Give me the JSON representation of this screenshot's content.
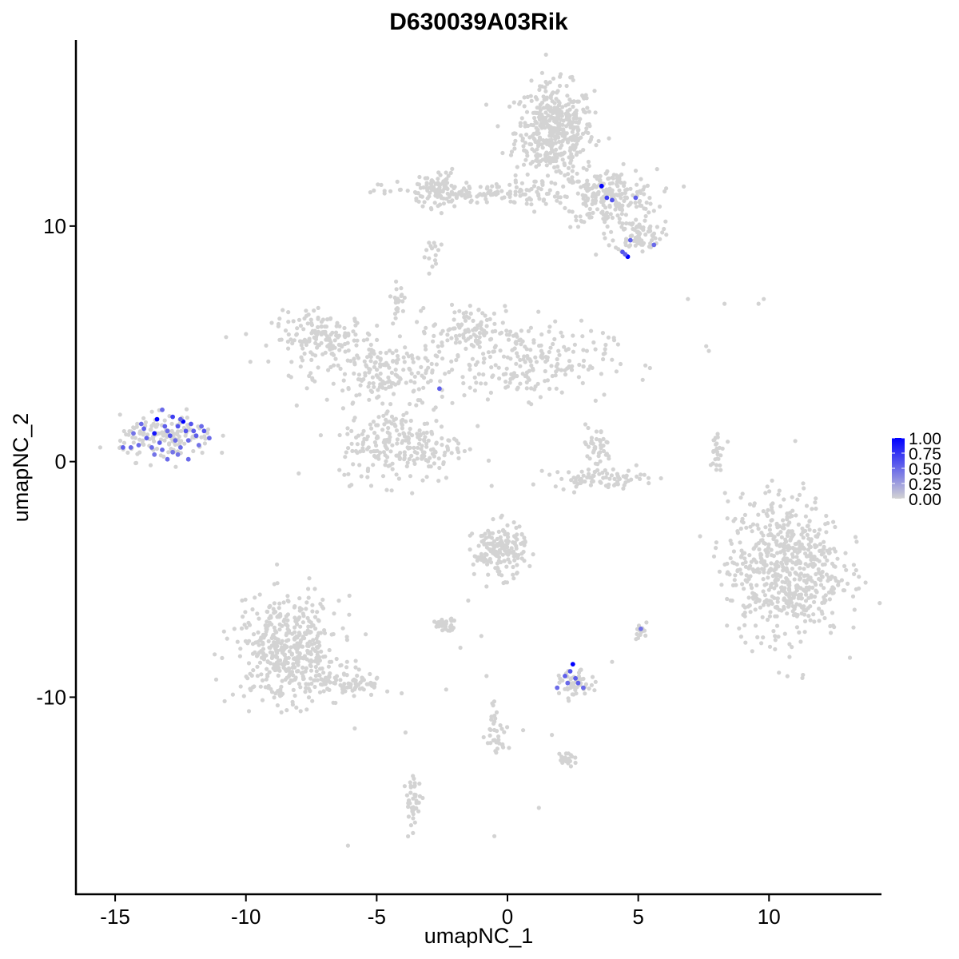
{
  "chart_data": {
    "type": "scatter",
    "title": "D630039A03Rik",
    "xlabel": "umapNC_1",
    "ylabel": "umapNC_2",
    "xlim": [
      -16.5,
      14.3
    ],
    "ylim": [
      -18.4,
      17.9
    ],
    "x_ticks": [
      -15,
      -10,
      -5,
      0,
      5,
      10
    ],
    "x_tick_labels": [
      "-15",
      "-10",
      "-5",
      "0",
      "5",
      "10"
    ],
    "y_ticks": [
      -10,
      0,
      10
    ],
    "y_tick_labels": [
      "-10",
      "0",
      "10"
    ],
    "grid": false,
    "legend": {
      "position": "right",
      "values": [
        0,
        0.25,
        0.5,
        0.75,
        1.0
      ],
      "labels": [
        "0.00",
        "0.25",
        "0.50",
        "0.75",
        "1.00"
      ],
      "color_low": "#d3d3d3",
      "color_high": "#0000ff"
    },
    "clusters": [
      {
        "cx": 1.8,
        "cy": 14.0,
        "sx": 0.75,
        "sy": 1.0,
        "n": 450
      },
      {
        "cx": 3.9,
        "cy": 11.2,
        "sx": 0.9,
        "sy": 0.6,
        "n": 230
      },
      {
        "cx": 5.0,
        "cy": 9.6,
        "sx": 0.45,
        "sy": 0.35,
        "n": 80
      },
      {
        "cx": -1.2,
        "cy": 11.4,
        "sx": 1.8,
        "sy": 0.25,
        "n": 150
      },
      {
        "cx": -2.7,
        "cy": 11.6,
        "sx": 0.35,
        "sy": 0.4,
        "n": 60
      },
      {
        "cx": -7.0,
        "cy": 5.2,
        "sx": 1.0,
        "sy": 0.55,
        "n": 170
      },
      {
        "cx": -4.5,
        "cy": 3.6,
        "sx": 1.2,
        "sy": 0.8,
        "n": 180
      },
      {
        "cx": 0.7,
        "cy": 4.3,
        "sx": 1.6,
        "sy": 0.8,
        "n": 220
      },
      {
        "cx": -1.5,
        "cy": 5.6,
        "sx": 0.7,
        "sy": 0.5,
        "n": 90
      },
      {
        "cx": -4.0,
        "cy": 0.7,
        "sx": 1.2,
        "sy": 0.8,
        "n": 240
      },
      {
        "cx": -4.2,
        "cy": 6.9,
        "sx": 0.12,
        "sy": 0.3,
        "n": 25
      },
      {
        "cx": 3.4,
        "cy": 0.6,
        "sx": 0.3,
        "sy": 0.45,
        "n": 40
      },
      {
        "cx": 3.5,
        "cy": -0.7,
        "sx": 0.9,
        "sy": 0.2,
        "n": 80
      },
      {
        "cx": 8.0,
        "cy": 0.4,
        "sx": 0.12,
        "sy": 0.5,
        "n": 25
      },
      {
        "cx": 10.6,
        "cy": -4.5,
        "sx": 1.1,
        "sy": 1.5,
        "n": 650
      },
      {
        "cx": -13.0,
        "cy": 1.0,
        "sx": 0.9,
        "sy": 0.45,
        "n": 150
      },
      {
        "cx": -8.4,
        "cy": -8.0,
        "sx": 1.0,
        "sy": 1.1,
        "n": 450
      },
      {
        "cx": -6.2,
        "cy": -9.4,
        "sx": 0.9,
        "sy": 0.3,
        "n": 90
      },
      {
        "cx": -0.3,
        "cy": -3.8,
        "sx": 0.5,
        "sy": 0.55,
        "n": 170
      },
      {
        "cx": 2.6,
        "cy": -9.5,
        "sx": 0.3,
        "sy": 0.3,
        "n": 55
      },
      {
        "cx": -2.4,
        "cy": -6.9,
        "sx": 0.25,
        "sy": 0.12,
        "n": 40
      },
      {
        "cx": -0.4,
        "cy": -11.3,
        "sx": 0.2,
        "sy": 0.6,
        "n": 35
      },
      {
        "cx": -3.6,
        "cy": -14.5,
        "sx": 0.15,
        "sy": 0.6,
        "n": 40
      },
      {
        "cx": 2.3,
        "cy": -12.6,
        "sx": 0.2,
        "sy": 0.15,
        "n": 20
      },
      {
        "cx": 5.1,
        "cy": -7.2,
        "sx": 0.12,
        "sy": 0.2,
        "n": 15
      },
      {
        "cx": -2.9,
        "cy": 8.8,
        "sx": 0.15,
        "sy": 0.3,
        "n": 15
      }
    ],
    "extra_points": [
      [
        6.9,
        6.9
      ],
      [
        8.3,
        6.7
      ],
      [
        9.6,
        6.7
      ],
      [
        9.8,
        6.9
      ],
      [
        7.6,
        4.9
      ],
      [
        7.7,
        4.7
      ],
      [
        -0.5,
        -15.9
      ],
      [
        -6.1,
        -16.3
      ],
      [
        1.7,
        -11.6
      ],
      [
        0.6,
        -11.4
      ],
      [
        -0.8,
        -9.1
      ],
      [
        -1.0,
        -7.4
      ],
      [
        1.2,
        -14.7
      ],
      [
        4.0,
        -8.5
      ],
      [
        -1.8,
        -7.9
      ],
      [
        -3.9,
        -11.5
      ],
      [
        -0.8,
        -5.3
      ],
      [
        -1.5,
        -5.9
      ]
    ],
    "expressing_cells": [
      {
        "x": -13.4,
        "y": 1.8,
        "v": 1.0
      },
      {
        "x": -12.4,
        "y": 1.7,
        "v": 1.0
      },
      {
        "x": -13.5,
        "y": 1.2,
        "v": 0.9
      },
      {
        "x": -12.8,
        "y": 1.9,
        "v": 0.7
      },
      {
        "x": -12.1,
        "y": 1.6,
        "v": 0.6
      },
      {
        "x": -11.6,
        "y": 1.3,
        "v": 0.6
      },
      {
        "x": -11.9,
        "y": 1.1,
        "v": 0.55
      },
      {
        "x": -12.6,
        "y": 1.5,
        "v": 0.6
      },
      {
        "x": -13.1,
        "y": 1.5,
        "v": 0.55
      },
      {
        "x": -12.9,
        "y": 1.1,
        "v": 0.6
      },
      {
        "x": -13.8,
        "y": 1.0,
        "v": 0.55
      },
      {
        "x": -14.1,
        "y": 0.7,
        "v": 0.5
      },
      {
        "x": -14.4,
        "y": 0.6,
        "v": 0.5
      },
      {
        "x": -14.7,
        "y": 0.6,
        "v": 0.55
      },
      {
        "x": -13.6,
        "y": 0.6,
        "v": 0.5
      },
      {
        "x": -13.2,
        "y": 0.5,
        "v": 0.5
      },
      {
        "x": -12.8,
        "y": 0.4,
        "v": 0.45
      },
      {
        "x": -12.5,
        "y": 0.6,
        "v": 0.5
      },
      {
        "x": -12.2,
        "y": 0.9,
        "v": 0.5
      },
      {
        "x": -11.8,
        "y": 0.7,
        "v": 0.45
      },
      {
        "x": -11.4,
        "y": 1.0,
        "v": 0.5
      },
      {
        "x": -13.9,
        "y": 1.4,
        "v": 0.55
      },
      {
        "x": -14.0,
        "y": 1.6,
        "v": 0.5
      },
      {
        "x": -13.3,
        "y": 0.8,
        "v": 0.55
      },
      {
        "x": -12.7,
        "y": 0.9,
        "v": 0.5
      },
      {
        "x": -12.3,
        "y": 1.3,
        "v": 0.6
      },
      {
        "x": -13.0,
        "y": 1.3,
        "v": 0.5
      },
      {
        "x": -12.0,
        "y": 1.3,
        "v": 0.55
      },
      {
        "x": -13.5,
        "y": 0.3,
        "v": 0.45
      },
      {
        "x": -13.0,
        "y": 0.1,
        "v": 0.5
      },
      {
        "x": -12.6,
        "y": 0.3,
        "v": 0.45
      },
      {
        "x": -12.2,
        "y": 0.1,
        "v": 0.5
      },
      {
        "x": -11.7,
        "y": 1.5,
        "v": 0.5
      },
      {
        "x": -12.5,
        "y": 1.8,
        "v": 0.55
      },
      {
        "x": -13.2,
        "y": 2.2,
        "v": 0.5
      },
      {
        "x": -14.3,
        "y": 1.2,
        "v": 0.45
      },
      {
        "x": 3.6,
        "y": 11.7,
        "v": 1.0
      },
      {
        "x": 3.8,
        "y": 11.2,
        "v": 0.7
      },
      {
        "x": 4.0,
        "y": 11.1,
        "v": 0.6
      },
      {
        "x": 4.9,
        "y": 11.2,
        "v": 0.55
      },
      {
        "x": 4.6,
        "y": 8.7,
        "v": 1.0
      },
      {
        "x": 4.4,
        "y": 8.9,
        "v": 0.6
      },
      {
        "x": 4.7,
        "y": 9.4,
        "v": 0.55
      },
      {
        "x": 5.6,
        "y": 9.2,
        "v": 0.5
      },
      {
        "x": 4.5,
        "y": 8.8,
        "v": 0.55
      },
      {
        "x": -2.6,
        "y": 3.1,
        "v": 0.55
      },
      {
        "x": 2.5,
        "y": -8.6,
        "v": 1.0
      },
      {
        "x": 2.4,
        "y": -8.9,
        "v": 0.6
      },
      {
        "x": 2.6,
        "y": -9.2,
        "v": 0.55
      },
      {
        "x": 2.3,
        "y": -9.4,
        "v": 0.5
      },
      {
        "x": 2.7,
        "y": -9.4,
        "v": 0.55
      },
      {
        "x": 2.9,
        "y": -9.6,
        "v": 0.5
      },
      {
        "x": 1.9,
        "y": -9.6,
        "v": 0.5
      },
      {
        "x": 2.2,
        "y": -9.1,
        "v": 0.55
      },
      {
        "x": 5.1,
        "y": -7.1,
        "v": 0.45
      }
    ]
  }
}
